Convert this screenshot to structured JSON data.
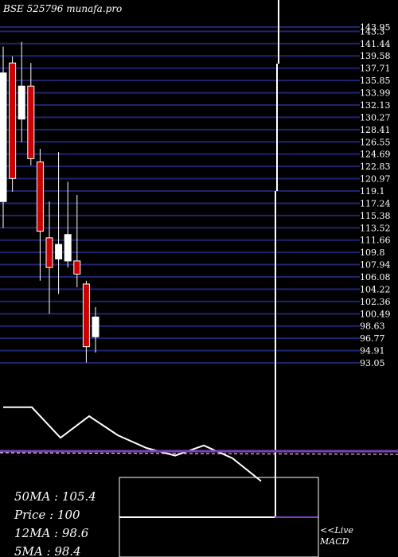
{
  "header": {
    "title": "BSE 525796  munafa.pro"
  },
  "info": {
    "ma50": "50MA : 105.4",
    "price": "Price   : 100",
    "ma12": "12MA : 98.6",
    "ma5": "5MA : 98.4"
  },
  "live_label": {
    "line1": "<<Live",
    "line2": "MACD"
  },
  "colors": {
    "background": "#000000",
    "grid": "#1f2470",
    "bull": "#ffffff",
    "bear": "#cc0000",
    "text": "#ffffff",
    "macd_signal": "#7b3fbf"
  },
  "chart_data": [
    {
      "type": "candlestick",
      "ylim": [
        93.05,
        143.95
      ],
      "y_tick_labels": [
        "143.95",
        "143.3",
        "141.44",
        "139.58",
        "137.71",
        "135.85",
        "133.99",
        "132.13",
        "130.27",
        "128.41",
        "126.55",
        "124.69",
        "122.83",
        "120.97",
        "119.1",
        "117.24",
        "115.38",
        "113.52",
        "111.66",
        "109.8",
        "107.94",
        "106.08",
        "104.22",
        "102.36",
        "100.49",
        "98.63",
        "96.77",
        "94.91",
        "93.05"
      ],
      "candles": [
        {
          "open": 117.5,
          "high": 141.0,
          "low": 113.5,
          "close": 137.0,
          "dir": "up"
        },
        {
          "open": 138.5,
          "high": 139.5,
          "low": 119.0,
          "close": 121.0,
          "dir": "down"
        },
        {
          "open": 130.0,
          "high": 141.7,
          "low": 126.5,
          "close": 135.0,
          "dir": "up"
        },
        {
          "open": 135.0,
          "high": 138.5,
          "low": 123.0,
          "close": 124.0,
          "dir": "down"
        },
        {
          "open": 123.5,
          "high": 125.5,
          "low": 105.5,
          "close": 113.0,
          "dir": "down"
        },
        {
          "open": 112.0,
          "high": 117.5,
          "low": 100.5,
          "close": 107.5,
          "dir": "down"
        },
        {
          "open": 108.8,
          "high": 125.0,
          "low": 103.5,
          "close": 111.0,
          "dir": "up"
        },
        {
          "open": 108.5,
          "high": 120.5,
          "low": 107.5,
          "close": 112.5,
          "dir": "up"
        },
        {
          "open": 108.5,
          "high": 118.5,
          "low": 104.5,
          "close": 106.5,
          "dir": "down"
        },
        {
          "open": 105.0,
          "high": 105.5,
          "low": 93.1,
          "close": 95.5,
          "dir": "down"
        },
        {
          "open": 97.0,
          "high": 101.5,
          "low": 94.6,
          "close": 100.0,
          "dir": "up"
        }
      ]
    },
    {
      "type": "line",
      "title": "MACD",
      "series": [
        {
          "values": [
            3.2,
            3.2,
            0.8,
            2.5,
            1.0,
            0,
            -0.6,
            0.2,
            -0.8,
            -2.6
          ]
        },
        {
          "values": [
            0.2,
            0.2,
            0.15,
            0.1,
            0.05,
            0,
            -0.05,
            -0.1,
            -0.15,
            -0.2
          ]
        }
      ]
    }
  ]
}
